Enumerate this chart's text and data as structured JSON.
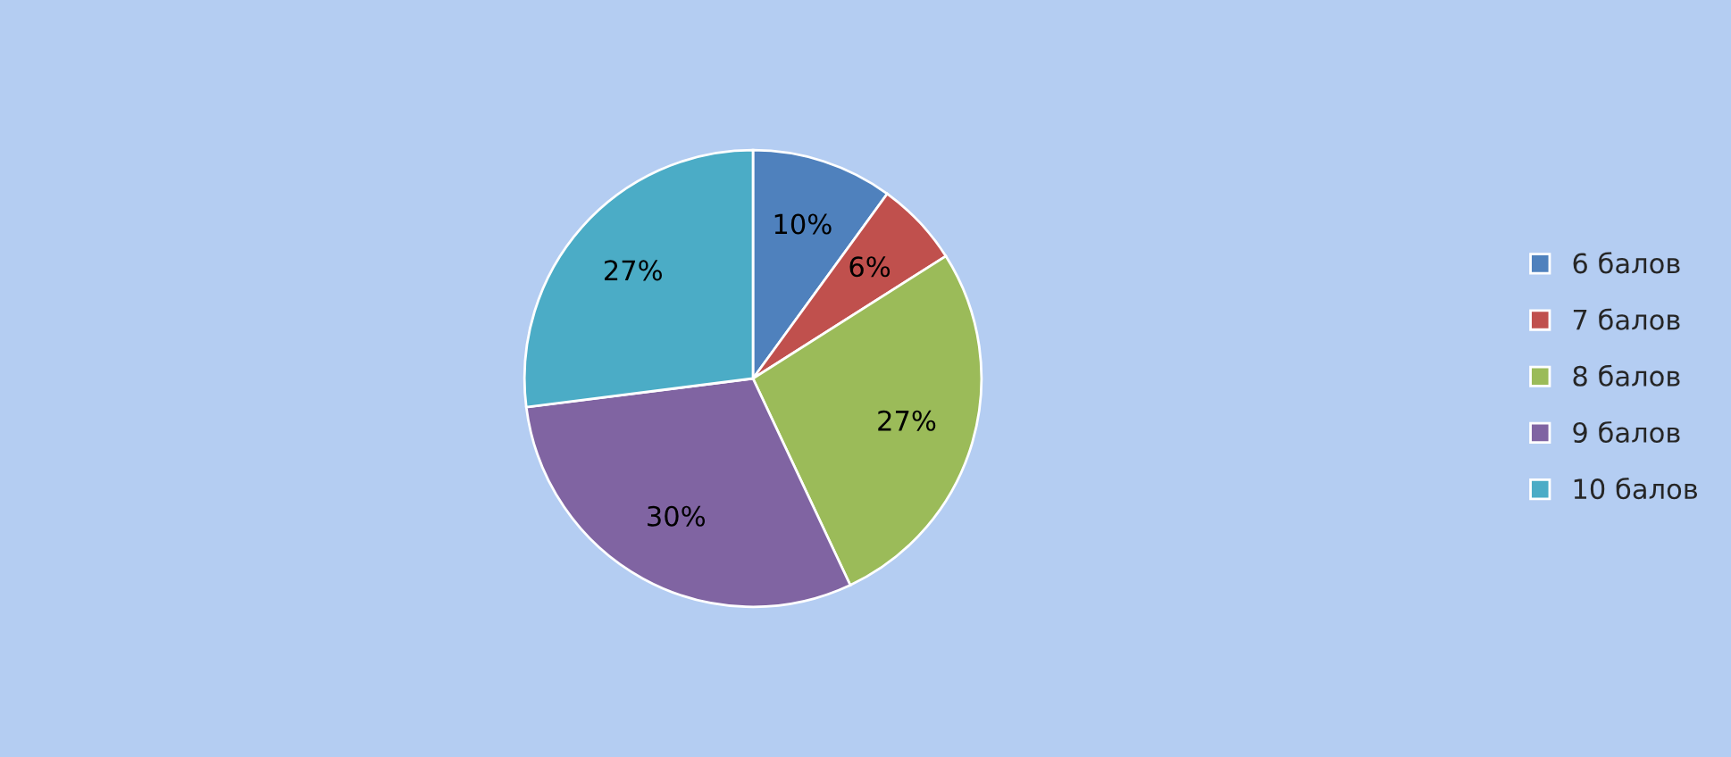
{
  "chart_data": {
    "type": "pie",
    "categories": [
      "6 балов",
      "7 балов",
      "8 балов",
      "9 балов",
      "10 балов"
    ],
    "values": [
      10,
      6,
      27,
      30,
      27
    ],
    "value_labels": [
      "10%",
      "6%",
      "27%",
      "30%",
      "27%"
    ],
    "colors": [
      "#4f81bd",
      "#c0504d",
      "#9bbb59",
      "#8064a2",
      "#4bacc6"
    ],
    "legend": "right"
  }
}
